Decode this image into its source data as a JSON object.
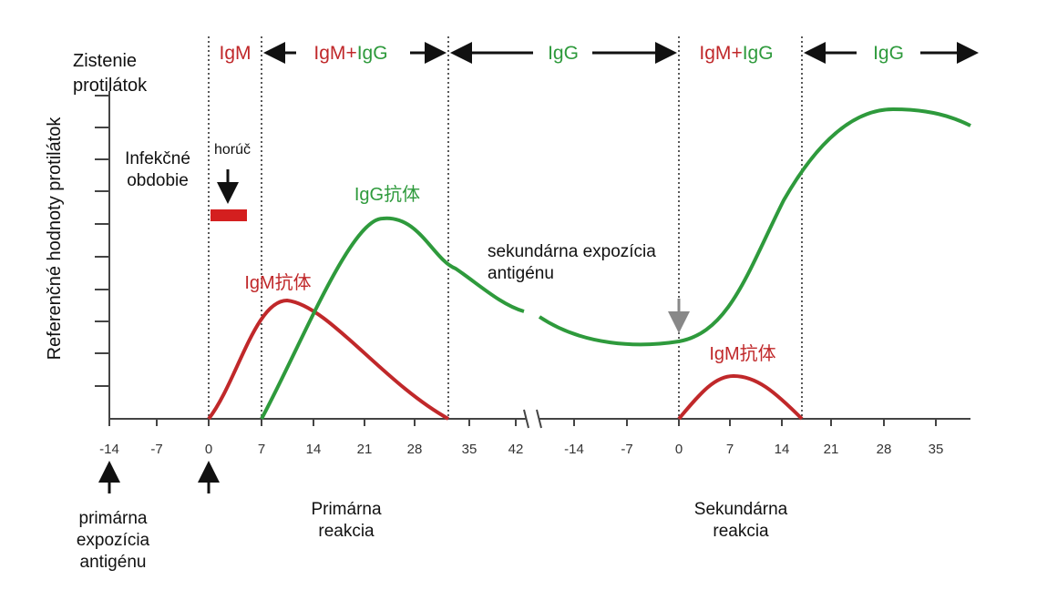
{
  "bands": [
    [
      "IgM"
    ],
    [
      "IgM",
      "+",
      "IgG"
    ],
    [
      "IgG"
    ],
    [
      "IgM",
      "+",
      "IgG"
    ],
    [
      "IgG"
    ]
  ],
  "y_label_top": [
    "Zistenie",
    "protilátok"
  ],
  "y_label_side": "Referenčné hodnoty protilátok",
  "infection_period": [
    "Infekčné",
    "obdobie"
  ],
  "fever": "horúč",
  "igg_primary_label": "IgG抗体",
  "igm_primary_label": "IgM抗体",
  "igm_secondary_label": "IgM抗体",
  "secondary_exposure": [
    "sekundárna expozícia",
    "antigénu"
  ],
  "x_ticks": [
    "-14",
    "-7",
    "0",
    "7",
    "14",
    "21",
    "28",
    "35",
    "42",
    "-14",
    "-7",
    "0",
    "7",
    "14",
    "21",
    "28",
    "35"
  ],
  "primary_exposure": [
    "primárna",
    "expozícia",
    "antigénu"
  ],
  "primary_reaction": [
    "Primárna",
    "reakcia"
  ],
  "secondary_reaction": [
    "Sekundárna",
    "reakcia"
  ]
}
